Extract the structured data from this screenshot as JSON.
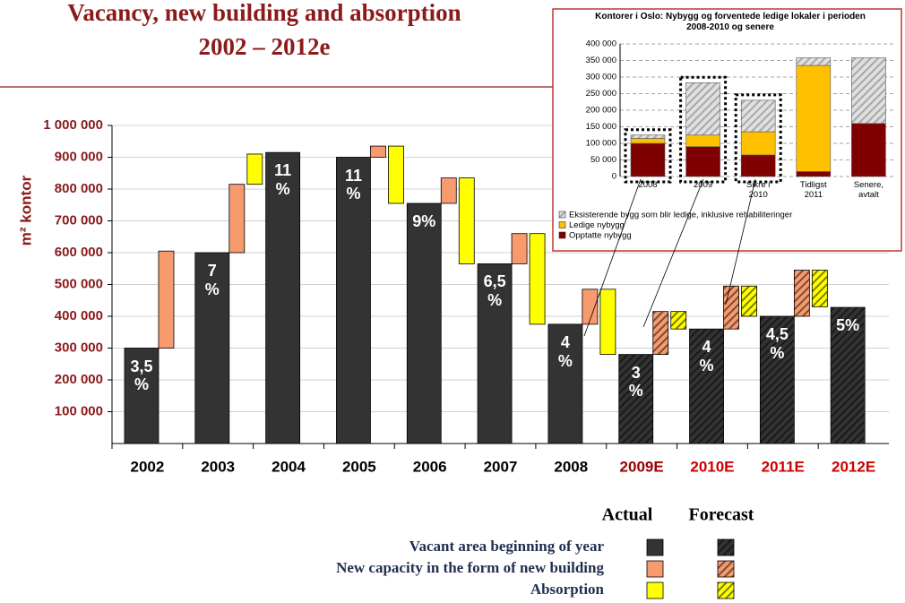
{
  "chart_data": [
    {
      "type": "waterfall",
      "title": "Vacancy, new building and absorption 2002 – 2012e",
      "y_label": "m² kontor",
      "categories": [
        "2002",
        "2003",
        "2004",
        "2005",
        "2006",
        "2007",
        "2008",
        "2009E",
        "2010E",
        "2011E",
        "2012E"
      ],
      "category_colors": [
        "#000000",
        "#000000",
        "#000000",
        "#000000",
        "#000000",
        "#000000",
        "#000000",
        "#990000",
        "#cc0000",
        "#cc0000",
        "#cc0000"
      ],
      "hatched": [
        false,
        false,
        false,
        false,
        false,
        false,
        false,
        true,
        true,
        true,
        true
      ],
      "legend_columns": [
        "Actual",
        "Forecast"
      ],
      "series": [
        {
          "name": "Vacant area beginning of year",
          "color": "#333333",
          "values": [
            300000,
            600000,
            915000,
            900000,
            755000,
            565000,
            375000,
            280000,
            360000,
            400000,
            428000
          ],
          "value_labels": [
            "3,5 %",
            "7 %",
            "11 %",
            "11 %",
            "9%",
            "6,5 %",
            "4 %",
            "3 %",
            "4 %",
            "4,5 %",
            "5%"
          ]
        },
        {
          "name": "New capacity in the form of new building",
          "color": "#f79a6e",
          "values": [
            305000,
            215000,
            null,
            35000,
            80000,
            95000,
            110000,
            135000,
            135000,
            145000,
            null
          ]
        },
        {
          "name": "Absorption",
          "color": "#ffff00",
          "values": [
            null,
            95000,
            null,
            -180000,
            -270000,
            -285000,
            -205000,
            -55000,
            -95000,
            -115000,
            null
          ]
        }
      ],
      "ylim": [
        0,
        1000000
      ],
      "yticks": [
        {
          "value": 100000,
          "label": "100 000"
        },
        {
          "value": 200000,
          "label": "200 000"
        },
        {
          "value": 300000,
          "label": "300 000"
        },
        {
          "value": 400000,
          "label": "400 000"
        },
        {
          "value": 500000,
          "label": "500 000"
        },
        {
          "value": 600000,
          "label": "600 000"
        },
        {
          "value": 700000,
          "label": "700 000"
        },
        {
          "value": 800000,
          "label": "800 000"
        },
        {
          "value": 900000,
          "label": "900 000"
        },
        {
          "value": 1000000,
          "label": "1 000 000"
        }
      ],
      "grid": true
    },
    {
      "type": "stacked_bar",
      "title": "Kontorer i Oslo: Nybygg og forventede ledige lokaler i perioden 2008-2010 og senere",
      "categories": [
        "2008",
        "2009",
        "Sikre i 2010",
        "Tidligst 2011",
        "Senere, avtalt"
      ],
      "series": [
        {
          "name": "Opptatte nybygg",
          "color": "#7f0000",
          "values": [
            100000,
            90000,
            65000,
            15000,
            160000
          ]
        },
        {
          "name": "Ledige nybygg",
          "color": "#ffc000",
          "values": [
            15000,
            35000,
            70000,
            320000,
            0
          ]
        },
        {
          "name": "Eksisterende bygg som blir ledige, inklusive rehabiliteringer",
          "color": "#e0e0e0",
          "hatched": true,
          "values": [
            10000,
            158000,
            95000,
            23000,
            198000
          ]
        }
      ],
      "ylim": [
        0,
        400000
      ],
      "yticks": [
        0,
        {
          "value": 50000,
          "label": "50 000"
        },
        {
          "value": 100000,
          "label": "100 000"
        },
        {
          "value": 150000,
          "label": "150 000"
        },
        {
          "value": 200000,
          "label": "200 000"
        },
        {
          "value": 250000,
          "label": "250 000"
        },
        {
          "value": 300000,
          "label": "300 000"
        },
        {
          "value": 350000,
          "label": "350 000"
        },
        {
          "value": 400000,
          "label": "400 000"
        }
      ],
      "grid": true
    }
  ]
}
